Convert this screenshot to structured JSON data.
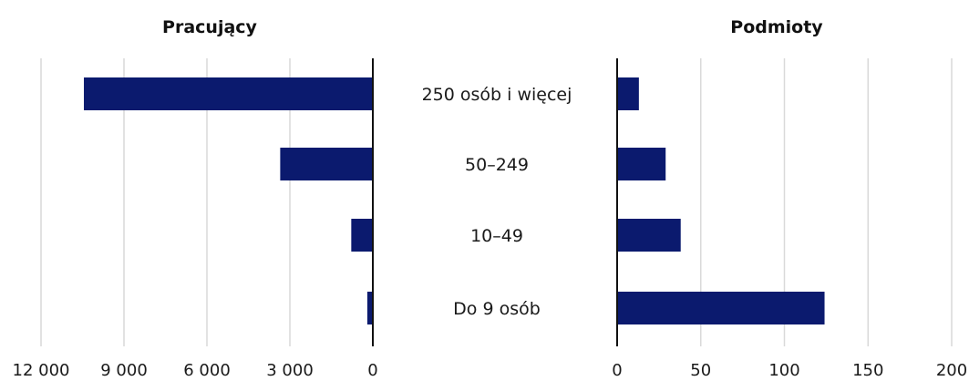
{
  "chart_data": [
    {
      "type": "bar",
      "orientation": "horizontal",
      "direction": "right-to-left",
      "title": "Pracujący",
      "categories": [
        "250 osób i więcej",
        "50–249",
        "10–49",
        "Do 9 osób"
      ],
      "values": [
        10450,
        3350,
        780,
        200
      ],
      "xlim": [
        0,
        12000
      ],
      "xticks": [
        12000,
        9000,
        6000,
        3000,
        0
      ],
      "xtick_labels": [
        "12 000",
        "9 000",
        "6 000",
        "3 000",
        "0"
      ],
      "grid": true,
      "bar_color": "#0b1a6e",
      "grid_color": "#d9d9d9"
    },
    {
      "type": "bar",
      "orientation": "horizontal",
      "direction": "left-to-right",
      "title": "Podmioty",
      "categories": [
        "250 osób i więcej",
        "50–249",
        "10–49",
        "Do 9 osób"
      ],
      "values": [
        13,
        29,
        38,
        124
      ],
      "xlim": [
        0,
        200
      ],
      "xticks": [
        0,
        50,
        100,
        150,
        200
      ],
      "xtick_labels": [
        "0",
        "50",
        "100",
        "150",
        "200"
      ],
      "grid": true,
      "bar_color": "#0b1a6e",
      "grid_color": "#d9d9d9"
    }
  ]
}
